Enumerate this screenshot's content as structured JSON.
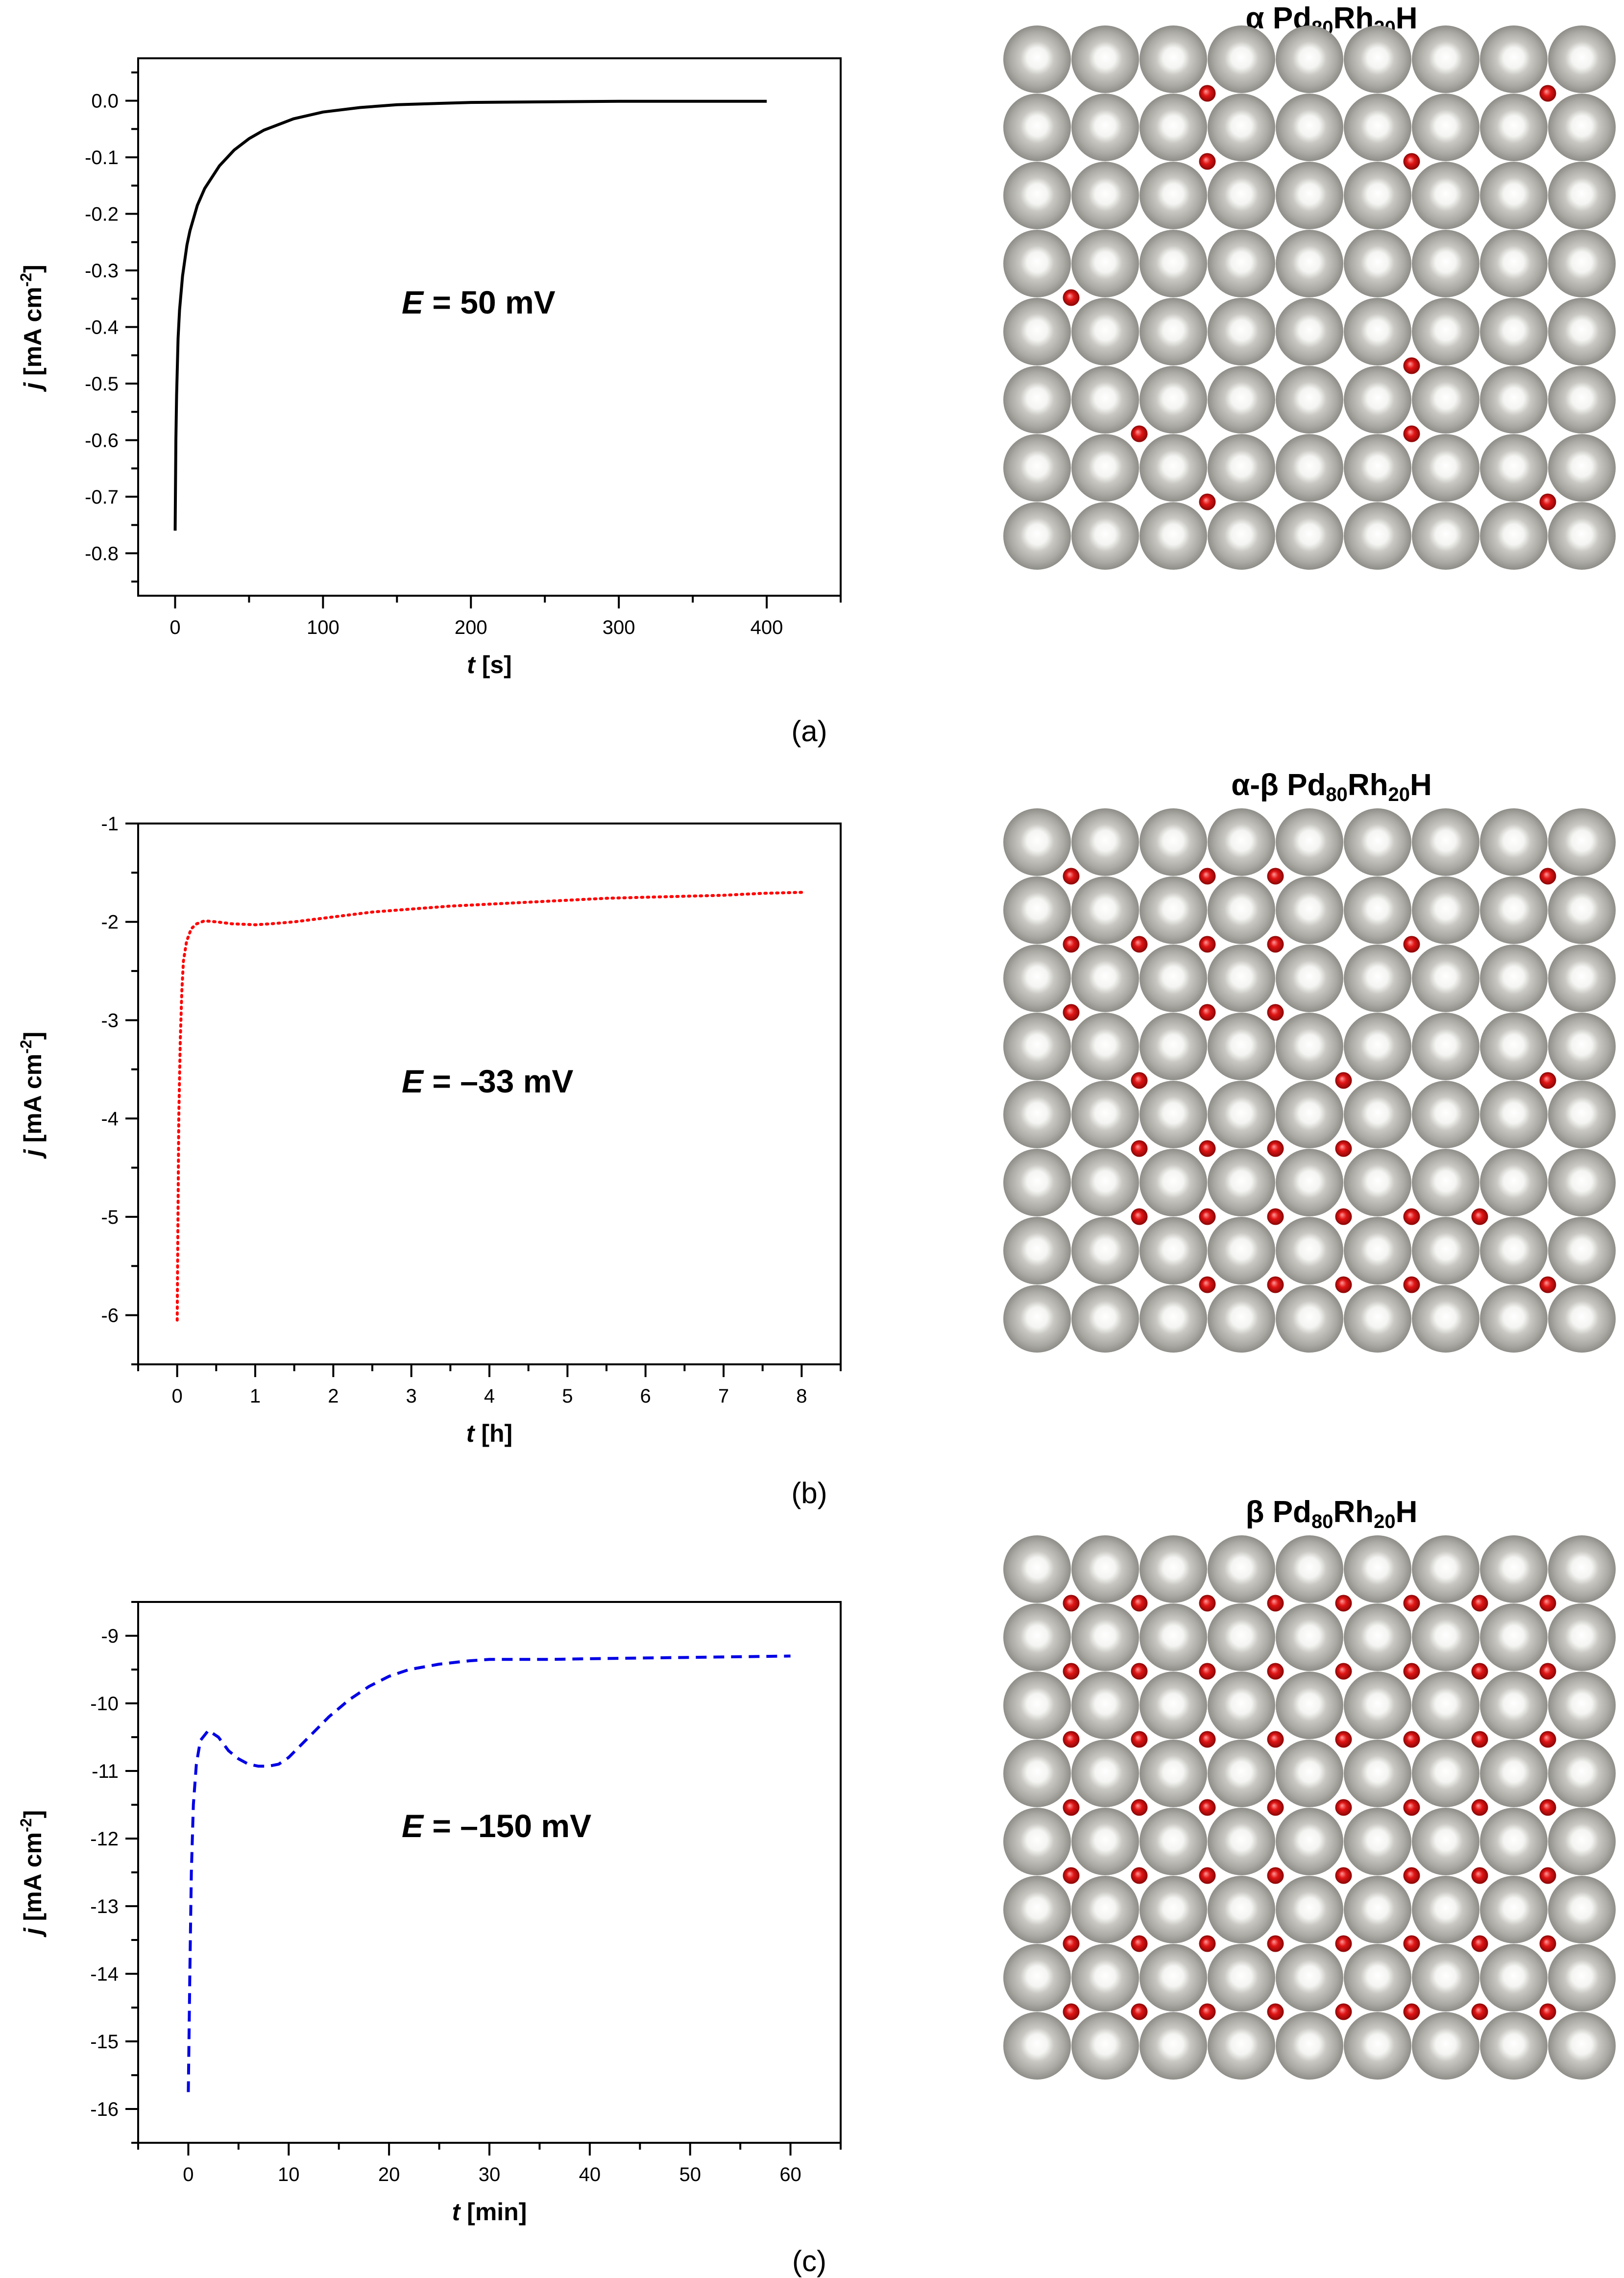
{
  "colors": {
    "atom": "#aaa9a3",
    "hydrogen": "#e01515",
    "series_a": "#000000",
    "series_b": "#ff0000",
    "series_c": "#0000e6"
  },
  "chart_data": [
    {
      "type": "line",
      "panel_label": "(a)",
      "annotation": {
        "italic": "E",
        "text": " = 50 mV"
      },
      "xlabel": {
        "italic": "t",
        "text": " [s]"
      },
      "ylabel": {
        "italic": "j",
        "text": " [mA cm",
        "sup": "-2",
        "tail": "]"
      },
      "xlim": [
        -25,
        450
      ],
      "ylim": [
        -0.875,
        0.075
      ],
      "xticks": [
        0,
        100,
        200,
        300,
        400
      ],
      "xtick_labels": [
        "0",
        "100",
        "200",
        "300",
        "400"
      ],
      "yticks": [
        0.0,
        -0.1,
        -0.2,
        -0.3,
        -0.4,
        -0.5,
        -0.6,
        -0.7,
        -0.8
      ],
      "ytick_labels": [
        "0.0",
        "-0.1",
        "-0.2",
        "-0.3",
        "-0.4",
        "-0.5",
        "-0.6",
        "-0.7",
        "-0.8"
      ],
      "line_style": "solid",
      "series": [
        {
          "x": [
            0,
            0.5,
            1,
            2,
            3,
            5,
            8,
            10,
            15,
            20,
            30,
            40,
            50,
            60,
            80,
            100,
            125,
            150,
            175,
            200,
            250,
            300,
            350,
            400
          ],
          "y": [
            -0.76,
            -0.6,
            -0.52,
            -0.42,
            -0.37,
            -0.31,
            -0.255,
            -0.23,
            -0.185,
            -0.155,
            -0.115,
            -0.087,
            -0.067,
            -0.052,
            -0.032,
            -0.02,
            -0.012,
            -0.007,
            -0.005,
            -0.003,
            -0.002,
            -0.001,
            -0.001,
            -0.001
          ]
        }
      ],
      "lattice_title": {
        "phase": "α",
        "base": "Pd",
        "sub1": "80",
        "mid": "Rh",
        "sub2": "20",
        "tail": "H"
      },
      "hydrogens": [
        [
          2,
          0
        ],
        [
          7,
          0
        ],
        [
          2,
          1
        ],
        [
          5,
          1
        ],
        [
          0,
          3
        ],
        [
          5,
          4
        ],
        [
          1,
          5
        ],
        [
          5,
          5
        ],
        [
          2,
          6
        ],
        [
          7,
          6
        ]
      ]
    },
    {
      "type": "line",
      "panel_label": "(b)",
      "annotation": {
        "italic": "E",
        "text": " = –33 mV"
      },
      "xlabel": {
        "italic": "t",
        "text": " [h]"
      },
      "ylabel": {
        "italic": "j",
        "text": " [mA cm",
        "sup": "-2",
        "tail": "]"
      },
      "xlim": [
        -0.5,
        8.5
      ],
      "ylim": [
        -6.5,
        -1
      ],
      "xticks": [
        0,
        1,
        2,
        3,
        4,
        5,
        6,
        7,
        8
      ],
      "xtick_labels": [
        "0",
        "1",
        "2",
        "3",
        "4",
        "5",
        "6",
        "7",
        "8"
      ],
      "yticks": [
        -1,
        -2,
        -3,
        -4,
        -5,
        -6
      ],
      "ytick_labels": [
        "-1",
        "-2",
        "-3",
        "-4",
        "-5",
        "-6"
      ],
      "line_style": "dotted",
      "series": [
        {
          "x": [
            0,
            0.01,
            0.02,
            0.04,
            0.06,
            0.08,
            0.12,
            0.18,
            0.25,
            0.35,
            0.5,
            0.7,
            1.0,
            1.2,
            1.5,
            2.0,
            2.5,
            3.0,
            3.5,
            4.0,
            4.5,
            5.0,
            5.5,
            6.0,
            6.5,
            7.0,
            7.5,
            8.0
          ],
          "y": [
            -6.05,
            -5.0,
            -4.0,
            -3.2,
            -2.7,
            -2.4,
            -2.2,
            -2.07,
            -2.02,
            -1.99,
            -2.0,
            -2.02,
            -2.03,
            -2.02,
            -2.0,
            -1.95,
            -1.9,
            -1.87,
            -1.84,
            -1.82,
            -1.8,
            -1.78,
            -1.76,
            -1.75,
            -1.74,
            -1.73,
            -1.71,
            -1.7
          ]
        }
      ],
      "lattice_title": {
        "phase": "α-β",
        "base": "Pd",
        "sub1": "80",
        "mid": "Rh",
        "sub2": "20",
        "tail": "H"
      },
      "hydrogens": [
        [
          0,
          0
        ],
        [
          2,
          0
        ],
        [
          3,
          0
        ],
        [
          7,
          0
        ],
        [
          0,
          1
        ],
        [
          1,
          1
        ],
        [
          2,
          1
        ],
        [
          3,
          1
        ],
        [
          5,
          1
        ],
        [
          0,
          2
        ],
        [
          2,
          2
        ],
        [
          3,
          2
        ],
        [
          1,
          3
        ],
        [
          4,
          3
        ],
        [
          7,
          3
        ],
        [
          1,
          4
        ],
        [
          2,
          4
        ],
        [
          3,
          4
        ],
        [
          4,
          4
        ],
        [
          1,
          5
        ],
        [
          2,
          5
        ],
        [
          3,
          5
        ],
        [
          4,
          5
        ],
        [
          5,
          5
        ],
        [
          6,
          5
        ],
        [
          2,
          6
        ],
        [
          3,
          6
        ],
        [
          4,
          6
        ],
        [
          5,
          6
        ],
        [
          7,
          6
        ]
      ]
    },
    {
      "type": "line",
      "panel_label": "(c)",
      "annotation": {
        "italic": "E",
        "text": " = –150 mV"
      },
      "xlabel": {
        "italic": "t",
        "text": " [min]"
      },
      "ylabel": {
        "italic": "j",
        "text": " [mA cm",
        "sup": "-2",
        "tail": "]"
      },
      "xlim": [
        -5,
        65
      ],
      "ylim": [
        -16.5,
        -8.5
      ],
      "xticks": [
        0,
        10,
        20,
        30,
        40,
        50,
        60
      ],
      "xtick_labels": [
        "0",
        "10",
        "20",
        "30",
        "40",
        "50",
        "60"
      ],
      "yticks": [
        -9,
        -10,
        -11,
        -12,
        -13,
        -14,
        -15,
        -16
      ],
      "ytick_labels": [
        "-9",
        "-10",
        "-11",
        "-12",
        "-13",
        "-14",
        "-15",
        "-16"
      ],
      "line_style": "dashed",
      "series": [
        {
          "x": [
            0,
            0.15,
            0.3,
            0.5,
            0.8,
            1.2,
            2,
            3,
            4,
            5,
            6,
            7,
            8,
            9,
            10,
            12,
            14,
            16,
            18,
            20,
            22,
            25,
            28,
            30,
            33,
            36,
            40,
            45,
            50,
            55,
            60
          ],
          "y": [
            -15.75,
            -14.0,
            -12.5,
            -11.5,
            -10.9,
            -10.55,
            -10.4,
            -10.5,
            -10.7,
            -10.82,
            -10.9,
            -10.93,
            -10.93,
            -10.9,
            -10.8,
            -10.5,
            -10.2,
            -9.95,
            -9.75,
            -9.6,
            -9.5,
            -9.42,
            -9.37,
            -9.35,
            -9.35,
            -9.35,
            -9.34,
            -9.33,
            -9.32,
            -9.31,
            -9.3
          ]
        }
      ],
      "lattice_title": {
        "phase": "β",
        "base": "Pd",
        "sub1": "80",
        "mid": "Rh",
        "sub2": "20",
        "tail": "H"
      },
      "hydrogens": "all"
    }
  ]
}
